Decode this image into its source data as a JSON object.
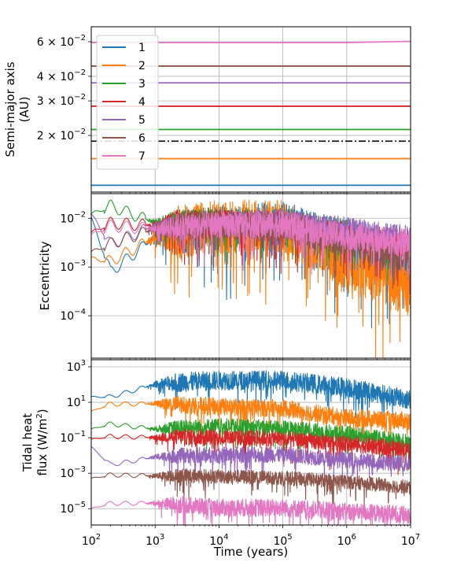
{
  "chart_data": [
    {
      "type": "line",
      "panel": "semi-major-axis",
      "ylabel_lines": [
        "Semi-major axis",
        "(AU)"
      ],
      "yscale": "log",
      "ylim": [
        0.0103,
        0.0715
      ],
      "yticks": [
        {
          "v": 0.06,
          "mant": "6 × 10",
          "exp": "−2"
        },
        {
          "v": 0.04,
          "mant": "4 × 10",
          "exp": "−2"
        },
        {
          "v": 0.03,
          "mant": "3 × 10",
          "exp": "−2"
        },
        {
          "v": 0.02,
          "mant": "2 × 10",
          "exp": "−2"
        }
      ],
      "series": [
        {
          "name": "1",
          "values_start_end": [
            0.01115,
            0.01115
          ]
        },
        {
          "name": "2",
          "values_start_end": [
            0.01525,
            0.01525
          ]
        },
        {
          "name": "3",
          "values_start_end": [
            0.02145,
            0.02145
          ]
        },
        {
          "name": "4",
          "values_start_end": [
            0.02818,
            0.02818
          ]
        },
        {
          "name": "5",
          "values_start_end": [
            0.03706,
            0.03706
          ]
        },
        {
          "name": "6",
          "values_start_end": [
            0.0451,
            0.0451
          ]
        },
        {
          "name": "7",
          "values_start_end": [
            0.0594,
            0.0603
          ]
        }
      ],
      "reference_line": {
        "value": 0.0187,
        "style": "dash-dot",
        "color": "#000000"
      },
      "legend": {
        "placement": "upper-left",
        "labels": [
          "1",
          "2",
          "3",
          "4",
          "5",
          "6",
          "7"
        ]
      }
    },
    {
      "type": "line",
      "panel": "eccentricity",
      "ylabel": "Eccentricity",
      "yscale": "log",
      "ylim": [
        1.35e-05,
        0.032
      ],
      "yticks": [
        {
          "v": 0.01,
          "mant": "10",
          "exp": "−2"
        },
        {
          "v": 0.001,
          "mant": "10",
          "exp": "−3"
        },
        {
          "v": 0.0001,
          "mant": "10",
          "exp": "−4"
        }
      ],
      "series": [
        {
          "name": "1",
          "x": [
            100,
            200,
            1000,
            10000,
            100000,
            1000000,
            10000000
          ],
          "values": [
            0.01,
            0.0008,
            0.004,
            0.006,
            0.007,
            0.003,
            0.0006
          ]
        },
        {
          "name": "2",
          "x": [
            100,
            200,
            1000,
            10000,
            100000,
            1000000,
            10000000
          ],
          "values": [
            0.0015,
            0.0013,
            0.004,
            0.006,
            0.006,
            0.001,
            0.0003
          ]
        },
        {
          "name": "3",
          "x": [
            100,
            200,
            1000,
            10000,
            100000,
            1000000,
            10000000
          ],
          "values": [
            0.012,
            0.018,
            0.008,
            0.008,
            0.008,
            0.005,
            0.002
          ]
        },
        {
          "name": "4",
          "x": [
            100,
            200,
            1000,
            10000,
            100000,
            1000000,
            10000000
          ],
          "values": [
            0.005,
            0.008,
            0.007,
            0.007,
            0.007,
            0.004,
            0.0025
          ]
        },
        {
          "name": "5",
          "x": [
            100,
            200,
            1000,
            10000,
            100000,
            1000000,
            10000000
          ],
          "values": [
            0.012,
            0.003,
            0.007,
            0.008,
            0.009,
            0.006,
            0.004
          ]
        },
        {
          "name": "6",
          "x": [
            100,
            200,
            1000,
            10000,
            100000,
            1000000,
            10000000
          ],
          "values": [
            0.002,
            0.003,
            0.006,
            0.007,
            0.006,
            0.003,
            0.0015
          ]
        },
        {
          "name": "7",
          "x": [
            100,
            200,
            1000,
            10000,
            100000,
            1000000,
            10000000
          ],
          "values": [
            0.0045,
            0.007,
            0.006,
            0.007,
            0.007,
            0.004,
            0.003
          ]
        }
      ]
    },
    {
      "type": "line",
      "panel": "tidal-heat-flux",
      "ylabel_lines": [
        "Tidal heat",
        "flux (W/m",
        "2",
        ")"
      ],
      "yscale": "log",
      "ylim": [
        1.2e-06,
        2500
      ],
      "yticks": [
        {
          "v": 1000,
          "mant": "10",
          "exp": "3"
        },
        {
          "v": 10,
          "mant": "10",
          "exp": "1"
        },
        {
          "v": 0.1,
          "mant": "10",
          "exp": "−1"
        },
        {
          "v": 0.001,
          "mant": "10",
          "exp": "−3"
        },
        {
          "v": 1e-05,
          "mant": "10",
          "exp": "−5"
        }
      ],
      "xlabel": "Time (years)",
      "xscale": "log",
      "xlim": [
        100,
        10000000
      ],
      "xticks": [
        {
          "v": 100,
          "mant": "10",
          "exp": "2"
        },
        {
          "v": 1000,
          "mant": "10",
          "exp": "3"
        },
        {
          "v": 10000,
          "mant": "10",
          "exp": "4"
        },
        {
          "v": 100000,
          "mant": "10",
          "exp": "5"
        },
        {
          "v": 1000000,
          "mant": "10",
          "exp": "6"
        },
        {
          "v": 10000000,
          "mant": "10",
          "exp": "7"
        }
      ],
      "series": [
        {
          "name": "1",
          "x": [
            100,
            200,
            1000,
            10000,
            100000,
            1000000,
            10000000
          ],
          "values": [
            20,
            20,
            100,
            150,
            150,
            60,
            12
          ]
        },
        {
          "name": "2",
          "x": [
            100,
            200,
            1000,
            10000,
            100000,
            1000000,
            10000000
          ],
          "values": [
            3,
            8,
            8,
            5,
            4,
            1.2,
            0.8
          ]
        },
        {
          "name": "3",
          "x": [
            100,
            200,
            1000,
            10000,
            100000,
            1000000,
            10000000
          ],
          "values": [
            0.3,
            0.6,
            0.3,
            0.4,
            0.3,
            0.15,
            0.05
          ]
        },
        {
          "name": "4",
          "x": [
            100,
            200,
            1000,
            10000,
            100000,
            1000000,
            10000000
          ],
          "values": [
            0.08,
            0.12,
            0.1,
            0.1,
            0.08,
            0.04,
            0.02
          ]
        },
        {
          "name": "5",
          "x": [
            100,
            200,
            1000,
            10000,
            100000,
            1000000,
            10000000
          ],
          "values": [
            0.03,
            0.003,
            0.008,
            0.01,
            0.01,
            0.005,
            0.003
          ]
        },
        {
          "name": "6",
          "x": [
            100,
            200,
            1000,
            10000,
            100000,
            1000000,
            10000000
          ],
          "values": [
            0.0005,
            0.0008,
            0.0007,
            0.0006,
            0.0005,
            0.0003,
            0.00015
          ]
        },
        {
          "name": "7",
          "x": [
            100,
            200,
            1000,
            10000,
            100000,
            1000000,
            10000000
          ],
          "values": [
            1e-05,
            2e-05,
            2e-05,
            1e-05,
            1e-05,
            6e-06,
            4e-06
          ]
        }
      ]
    }
  ],
  "colors": {
    "1": "#1f77b4",
    "2": "#ff7f0e",
    "3": "#2ca02c",
    "4": "#d62728",
    "5": "#9467bd",
    "6": "#8c564b",
    "7": "#e377c2"
  }
}
